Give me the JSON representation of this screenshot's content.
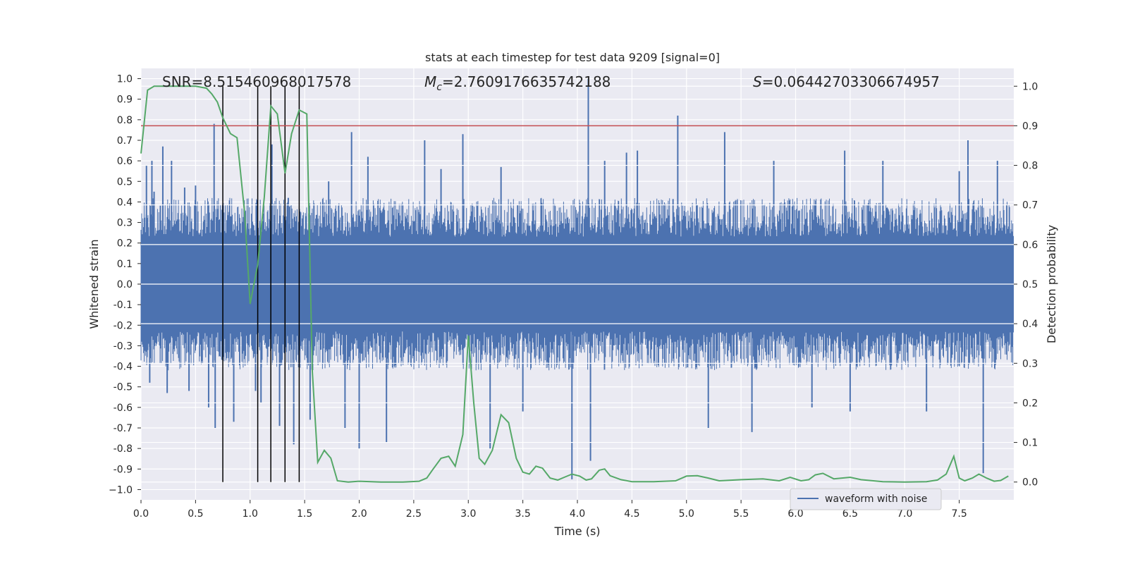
{
  "chart_data": {
    "type": "line",
    "title": "stats at each timestep for test data 9209 [signal=0]",
    "xlabel": "Time (s)",
    "ylabel_left": "Whitened strain",
    "ylabel_right": "Detection probability",
    "xlim": [
      0.0,
      8.0
    ],
    "ylim_left": [
      -1.05,
      1.05
    ],
    "ylim_right": [
      -0.045,
      1.045
    ],
    "xticks": [
      "0.0",
      "0.5",
      "1.0",
      "1.5",
      "2.0",
      "2.5",
      "3.0",
      "3.5",
      "4.0",
      "4.5",
      "5.0",
      "5.5",
      "6.0",
      "6.5",
      "7.0",
      "7.5"
    ],
    "yticks_left": [
      "1.0",
      "0.9",
      "0.8",
      "0.7",
      "0.6",
      "0.5",
      "0.4",
      "0.3",
      "0.2",
      "0.1",
      "0.0",
      "-0.1",
      "-0.2",
      "-0.3",
      "-0.4",
      "-0.5",
      "-0.6",
      "-0.7",
      "-0.8",
      "-0.9",
      "−1.0"
    ],
    "yticks_right": [
      "1.0",
      "0.9",
      "0.8",
      "0.7",
      "0.6",
      "0.5",
      "0.4",
      "0.3",
      "0.2",
      "0.1",
      "0.0"
    ],
    "grid": true,
    "legend_position": "lower-right",
    "annotations": {
      "snr": "SNR=8.515460968017578",
      "mc_prefix": "M",
      "mc_sub": "c",
      "mc_value": "=2.7609176635742188",
      "s_prefix": "S",
      "s_value": "=0.06442703306674957"
    },
    "threshold_right": 0.9,
    "vertical_lines": [
      0.75,
      1.07,
      1.19,
      1.32,
      1.45
    ],
    "waveform": {
      "name": "waveform with noise",
      "color": "#4c72b0",
      "envelope_abs": 0.42,
      "spikes": [
        {
          "x": 0.05,
          "y": 0.58
        },
        {
          "x": 0.08,
          "y": -0.48
        },
        {
          "x": 0.1,
          "y": 0.6
        },
        {
          "x": 0.12,
          "y": 0.45
        },
        {
          "x": 0.2,
          "y": 0.67
        },
        {
          "x": 0.24,
          "y": -0.53
        },
        {
          "x": 0.28,
          "y": 0.6
        },
        {
          "x": 0.4,
          "y": 0.47
        },
        {
          "x": 0.44,
          "y": -0.52
        },
        {
          "x": 0.5,
          "y": 0.48
        },
        {
          "x": 0.62,
          "y": -0.6
        },
        {
          "x": 0.67,
          "y": 0.78
        },
        {
          "x": 0.68,
          "y": -0.7
        },
        {
          "x": 0.85,
          "y": -0.67
        },
        {
          "x": 1.05,
          "y": -0.52
        },
        {
          "x": 1.1,
          "y": -0.58
        },
        {
          "x": 1.2,
          "y": 0.68
        },
        {
          "x": 1.27,
          "y": -0.69
        },
        {
          "x": 1.35,
          "y": 0.42
        },
        {
          "x": 1.4,
          "y": -0.78
        },
        {
          "x": 1.55,
          "y": -0.66
        },
        {
          "x": 1.72,
          "y": 0.5
        },
        {
          "x": 1.87,
          "y": -0.7
        },
        {
          "x": 1.93,
          "y": 0.74
        },
        {
          "x": 2.0,
          "y": -0.8
        },
        {
          "x": 2.08,
          "y": 0.62
        },
        {
          "x": 2.25,
          "y": -0.77
        },
        {
          "x": 2.6,
          "y": 0.7
        },
        {
          "x": 2.75,
          "y": 0.56
        },
        {
          "x": 2.95,
          "y": 0.73
        },
        {
          "x": 3.2,
          "y": -0.8
        },
        {
          "x": 3.3,
          "y": 0.57
        },
        {
          "x": 3.5,
          "y": -0.62
        },
        {
          "x": 3.95,
          "y": -0.95
        },
        {
          "x": 4.1,
          "y": 1.0
        },
        {
          "x": 4.12,
          "y": -0.86
        },
        {
          "x": 4.25,
          "y": 0.6
        },
        {
          "x": 4.45,
          "y": 0.64
        },
        {
          "x": 4.55,
          "y": 0.65
        },
        {
          "x": 4.92,
          "y": 0.82
        },
        {
          "x": 5.2,
          "y": -0.7
        },
        {
          "x": 5.35,
          "y": 0.74
        },
        {
          "x": 5.6,
          "y": -0.72
        },
        {
          "x": 5.8,
          "y": 0.6
        },
        {
          "x": 6.15,
          "y": -0.6
        },
        {
          "x": 6.45,
          "y": 0.65
        },
        {
          "x": 6.5,
          "y": -0.62
        },
        {
          "x": 6.8,
          "y": 0.6
        },
        {
          "x": 7.2,
          "y": -0.62
        },
        {
          "x": 7.5,
          "y": 0.55
        },
        {
          "x": 7.58,
          "y": 0.7
        },
        {
          "x": 7.72,
          "y": -0.92
        },
        {
          "x": 7.85,
          "y": 0.6
        }
      ]
    },
    "probability": {
      "color": "#55a868",
      "x": [
        0.0,
        0.06,
        0.12,
        0.2,
        0.3,
        0.4,
        0.5,
        0.6,
        0.65,
        0.7,
        0.75,
        0.82,
        0.88,
        0.95,
        1.0,
        1.07,
        1.13,
        1.19,
        1.25,
        1.32,
        1.38,
        1.45,
        1.52,
        1.57,
        1.62,
        1.68,
        1.74,
        1.8,
        1.9,
        2.0,
        2.2,
        2.4,
        2.55,
        2.62,
        2.67,
        2.75,
        2.82,
        2.88,
        2.95,
        3.0,
        3.05,
        3.1,
        3.15,
        3.22,
        3.3,
        3.37,
        3.44,
        3.5,
        3.56,
        3.62,
        3.68,
        3.75,
        3.82,
        3.88,
        3.95,
        4.02,
        4.08,
        4.13,
        4.2,
        4.25,
        4.3,
        4.4,
        4.5,
        4.7,
        4.9,
        5.0,
        5.1,
        5.2,
        5.3,
        5.5,
        5.7,
        5.85,
        5.95,
        6.05,
        6.12,
        6.18,
        6.25,
        6.35,
        6.5,
        6.6,
        6.8,
        7.0,
        7.2,
        7.3,
        7.38,
        7.45,
        7.5,
        7.55,
        7.62,
        7.68,
        7.75,
        7.82,
        7.88,
        7.95
      ],
      "y": [
        0.83,
        0.99,
        1.0,
        1.0,
        1.0,
        1.0,
        1.0,
        0.995,
        0.98,
        0.96,
        0.92,
        0.88,
        0.87,
        0.68,
        0.45,
        0.55,
        0.72,
        0.95,
        0.93,
        0.78,
        0.88,
        0.94,
        0.93,
        0.28,
        0.05,
        0.08,
        0.06,
        0.003,
        0.0,
        0.002,
        0.0,
        0.0,
        0.002,
        0.01,
        0.03,
        0.06,
        0.065,
        0.04,
        0.12,
        0.37,
        0.2,
        0.06,
        0.045,
        0.08,
        0.17,
        0.15,
        0.06,
        0.025,
        0.02,
        0.04,
        0.035,
        0.01,
        0.005,
        0.012,
        0.02,
        0.015,
        0.005,
        0.008,
        0.03,
        0.033,
        0.016,
        0.006,
        0.001,
        0.001,
        0.003,
        0.015,
        0.016,
        0.01,
        0.003,
        0.006,
        0.008,
        0.003,
        0.012,
        0.003,
        0.006,
        0.018,
        0.022,
        0.008,
        0.012,
        0.006,
        0.001,
        0.0,
        0.001,
        0.005,
        0.02,
        0.065,
        0.01,
        0.003,
        0.01,
        0.02,
        0.01,
        0.002,
        0.004,
        0.015
      ]
    }
  }
}
